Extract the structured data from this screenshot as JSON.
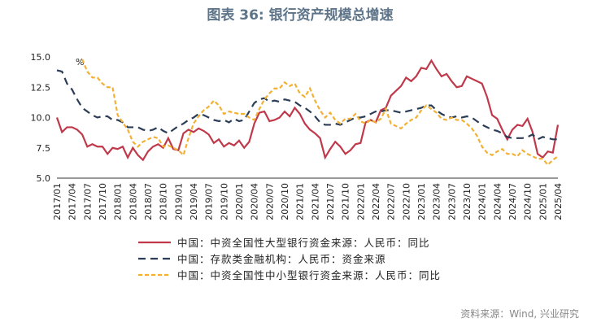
{
  "chart_data": {
    "type": "line",
    "title": "图表 36: 银行资产规模总增速",
    "annotation": "%",
    "source": "资料来源：Wind, 兴业研究",
    "categories": [
      "2017/01",
      null,
      null,
      "2017/04",
      null,
      null,
      "2017/07",
      null,
      null,
      "2017/10",
      null,
      null,
      "2018/01",
      null,
      null,
      "2018/04",
      null,
      null,
      "2018/07",
      null,
      null,
      "2018/10",
      null,
      null,
      "2019/01",
      null,
      null,
      "2019/04",
      null,
      null,
      "2019/07",
      null,
      null,
      "2019/10",
      null,
      null,
      "2020/01",
      null,
      null,
      "2020/04",
      null,
      null,
      "2020/07",
      null,
      null,
      "2020/10",
      null,
      null,
      "2021/01",
      null,
      null,
      "2021/04",
      null,
      null,
      "2021/07",
      null,
      null,
      "2021/10",
      null,
      null,
      "2022/01",
      null,
      null,
      "2022/04",
      null,
      null,
      "2022/07",
      null,
      null,
      "2022/10",
      null,
      null,
      "2023/01",
      null,
      null,
      "2023/04",
      null,
      null,
      "2023/07",
      null,
      null,
      "2023/10",
      null,
      null,
      "2024/01",
      null,
      null,
      "2024/04",
      null,
      null,
      "2024/07",
      null,
      null,
      "2024/10",
      null,
      null,
      "2025/01",
      null,
      null,
      "2025/04"
    ],
    "series": [
      {
        "name": "中国：中资全国性大型银行资金来源：人民币：同比",
        "color": "#c0394b",
        "dash": "none",
        "values": [
          10.0,
          8.8,
          9.2,
          9.2,
          9.0,
          8.6,
          7.6,
          7.8,
          7.6,
          7.6,
          7.0,
          7.5,
          7.4,
          7.6,
          6.7,
          7.5,
          6.9,
          6.5,
          7.2,
          7.6,
          7.8,
          7.5,
          8.3,
          7.4,
          7.3,
          8.7,
          9.0,
          8.8,
          9.1,
          8.9,
          8.6,
          7.9,
          8.2,
          7.6,
          7.9,
          7.7,
          8.1,
          7.5,
          8.0,
          9.5,
          10.4,
          10.5,
          9.7,
          9.8,
          10.0,
          10.5,
          10.1,
          10.8,
          10.3,
          9.5,
          9.0,
          8.7,
          8.3,
          6.7,
          7.4,
          8.0,
          7.6,
          7.0,
          7.3,
          7.8,
          7.9,
          9.6,
          9.8,
          9.6,
          10.6,
          10.8,
          11.8,
          12.2,
          12.6,
          13.3,
          13.0,
          13.4,
          14.1,
          14.0,
          14.7,
          14.0,
          13.4,
          13.6,
          13.0,
          12.5,
          12.6,
          13.4,
          13.2,
          13.0,
          12.8,
          11.7,
          10.2,
          9.9,
          9.0,
          8.2,
          9.0,
          9.4,
          9.3,
          9.9,
          8.8,
          7.0,
          6.7,
          7.2,
          7.1,
          9.4
        ]
      },
      {
        "name": "中国：存款类金融机构：人民币：资金来源",
        "color": "#2b3d57",
        "dash": "9 6",
        "values": [
          13.9,
          13.8,
          12.8,
          12.3,
          11.5,
          10.8,
          10.5,
          10.2,
          10.0,
          10.1,
          10.1,
          9.8,
          9.8,
          9.6,
          9.2,
          9.2,
          9.2,
          9.0,
          8.9,
          9.0,
          9.2,
          8.9,
          8.7,
          9.0,
          9.3,
          9.5,
          9.8,
          10.0,
          10.3,
          10.2,
          10.0,
          9.8,
          9.7,
          9.8,
          9.6,
          9.9,
          9.7,
          9.8,
          10.5,
          11.2,
          11.5,
          11.6,
          11.3,
          11.4,
          11.3,
          11.5,
          11.4,
          11.3,
          11.0,
          10.8,
          10.5,
          10.1,
          9.6,
          9.4,
          9.4,
          9.5,
          9.4,
          9.6,
          9.8,
          10.0,
          10.0,
          10.1,
          10.3,
          10.5,
          10.5,
          10.6,
          10.6,
          10.5,
          10.4,
          10.5,
          10.6,
          10.7,
          10.8,
          11.0,
          11.0,
          10.6,
          10.3,
          10.1,
          10.0,
          10.1,
          10.0,
          10.1,
          10.0,
          9.7,
          9.4,
          9.2,
          9.0,
          8.9,
          8.7,
          8.4,
          8.3,
          8.3,
          8.3,
          8.4,
          8.6,
          8.2,
          8.4,
          8.3,
          8.2,
          8.2
        ]
      },
      {
        "name": "中国：中资全国性中小型银行资金来源：人民币：同比",
        "color": "#f2b134",
        "dash": "5 3",
        "values": [
          null,
          null,
          null,
          null,
          null,
          14.8,
          13.8,
          13.3,
          13.3,
          12.8,
          12.5,
          12.5,
          10.2,
          9.6,
          9.0,
          8.0,
          7.6,
          8.0,
          8.2,
          8.4,
          8.3,
          7.6,
          7.7,
          7.5,
          7.3,
          6.9,
          8.3,
          9.5,
          10.1,
          10.6,
          10.9,
          11.4,
          11.0,
          10.3,
          10.5,
          10.4,
          10.3,
          10.3,
          10.0,
          9.8,
          10.7,
          11.5,
          12.0,
          12.4,
          12.4,
          12.9,
          12.6,
          12.8,
          12.0,
          11.7,
          12.4,
          11.4,
          10.6,
          10.0,
          10.4,
          9.8,
          9.5,
          9.9,
          9.9,
          10.3,
          9.7,
          9.5,
          9.8,
          9.6,
          9.9,
          10.7,
          9.5,
          9.3,
          9.1,
          9.5,
          9.8,
          10.0,
          10.6,
          11.0,
          10.7,
          10.4,
          9.9,
          9.8,
          10.0,
          9.8,
          9.8,
          9.5,
          9.1,
          8.5,
          7.6,
          7.1,
          6.9,
          7.2,
          7.4,
          7.0,
          7.0,
          6.8,
          7.3,
          7.0,
          6.8,
          6.6,
          6.6,
          6.1,
          6.5,
          6.8
        ]
      }
    ],
    "ylim": [
      5,
      15
    ],
    "yticks": [
      {
        "value": 5,
        "label": "5.0"
      },
      7.5,
      {
        "value": 10,
        "label": "10.0"
      },
      12.5,
      {
        "value": 15,
        "label": "15.0"
      }
    ]
  }
}
